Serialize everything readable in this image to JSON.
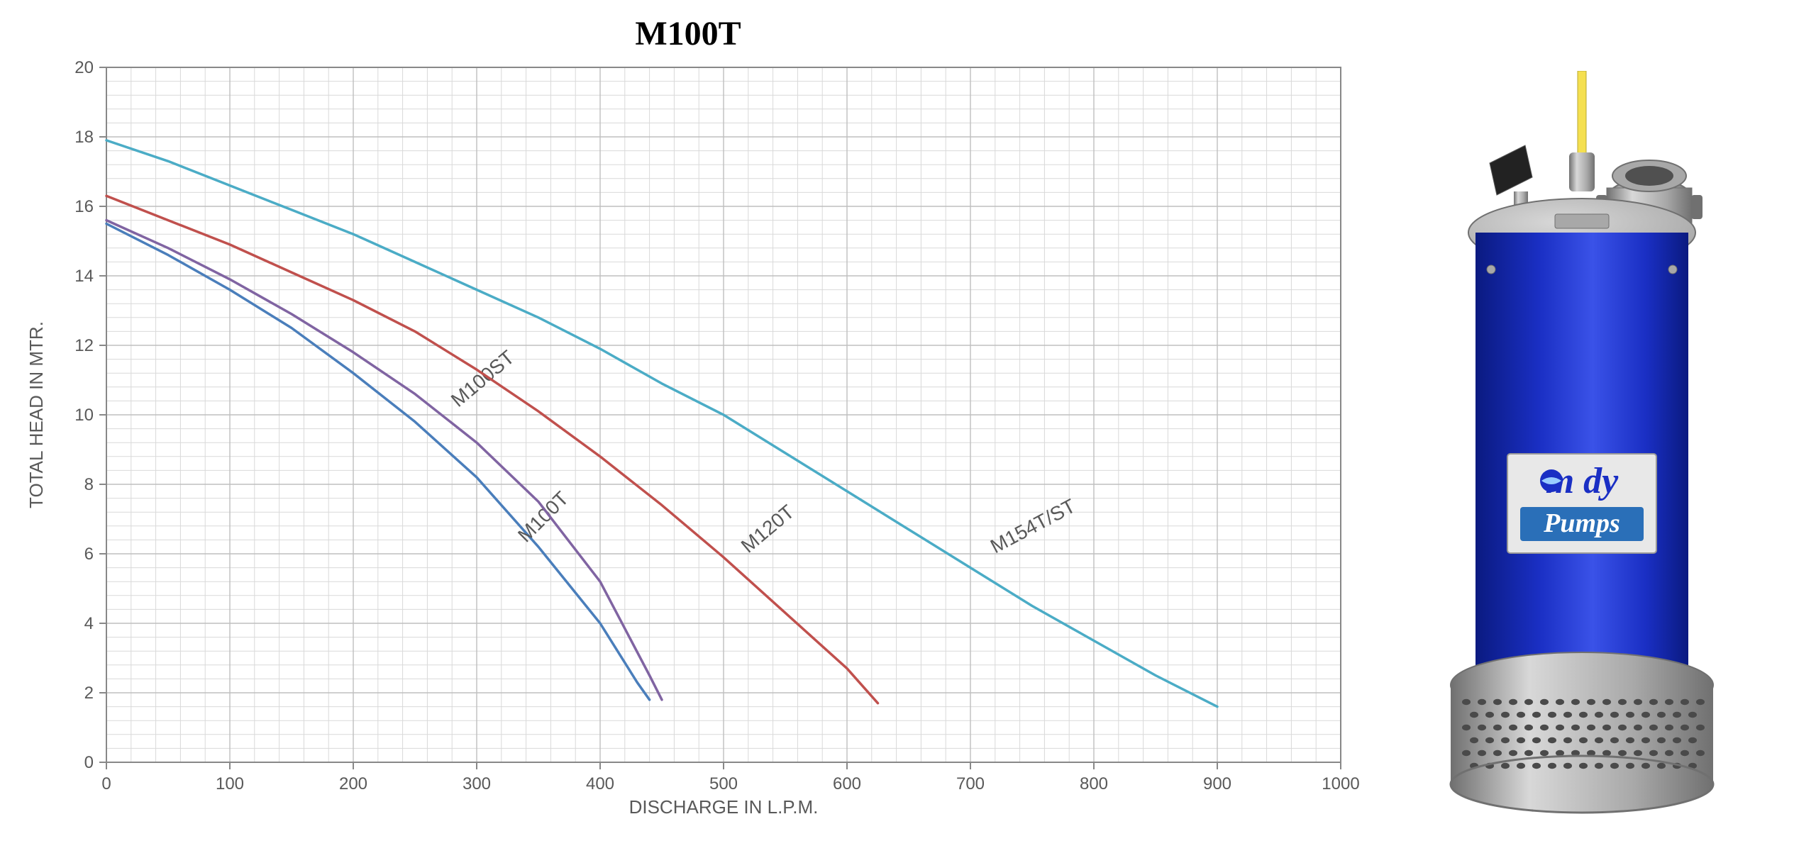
{
  "chart": {
    "type": "line",
    "title": "M100T",
    "title_fontsize": 48,
    "xlabel": "DISCHARGE IN L.P.M.",
    "ylabel": "TOTAL HEAD IN MTR.",
    "label_fontsize": 26,
    "tick_fontsize": 24,
    "xlim": [
      0,
      1000
    ],
    "ylim": [
      0,
      20
    ],
    "xtick_step": 100,
    "ytick_step": 2,
    "x_minor_per_major": 5,
    "y_minor_per_major": 5,
    "background_color": "#ffffff",
    "plot_area_color": "#ffffff",
    "border_color": "#888888",
    "major_grid_color": "#bfbfbf",
    "minor_grid_color": "#d9d9d9",
    "axis_text_color": "#595959",
    "line_width": 3.5,
    "series": [
      {
        "name": "M100T",
        "color": "#4a7ebb",
        "points": [
          {
            "x": 0,
            "y": 15.5
          },
          {
            "x": 50,
            "y": 14.6
          },
          {
            "x": 100,
            "y": 13.6
          },
          {
            "x": 150,
            "y": 12.5
          },
          {
            "x": 200,
            "y": 11.2
          },
          {
            "x": 250,
            "y": 9.8
          },
          {
            "x": 300,
            "y": 8.2
          },
          {
            "x": 350,
            "y": 6.2
          },
          {
            "x": 400,
            "y": 4.0
          },
          {
            "x": 430,
            "y": 2.3
          },
          {
            "x": 440,
            "y": 1.8
          }
        ],
        "label_pos": {
          "x": 340,
          "y": 6.3,
          "angle": -45
        }
      },
      {
        "name": "M100ST",
        "color": "#8064a2",
        "points": [
          {
            "x": 0,
            "y": 15.6
          },
          {
            "x": 50,
            "y": 14.8
          },
          {
            "x": 100,
            "y": 13.9
          },
          {
            "x": 150,
            "y": 12.9
          },
          {
            "x": 200,
            "y": 11.8
          },
          {
            "x": 250,
            "y": 10.6
          },
          {
            "x": 300,
            "y": 9.2
          },
          {
            "x": 350,
            "y": 7.5
          },
          {
            "x": 400,
            "y": 5.2
          },
          {
            "x": 440,
            "y": 2.5
          },
          {
            "x": 450,
            "y": 1.8
          }
        ],
        "label_pos": {
          "x": 285,
          "y": 10.2,
          "angle": -40
        }
      },
      {
        "name": "M120T",
        "color": "#c0504d",
        "points": [
          {
            "x": 0,
            "y": 16.3
          },
          {
            "x": 50,
            "y": 15.6
          },
          {
            "x": 100,
            "y": 14.9
          },
          {
            "x": 150,
            "y": 14.1
          },
          {
            "x": 200,
            "y": 13.3
          },
          {
            "x": 250,
            "y": 12.4
          },
          {
            "x": 300,
            "y": 11.3
          },
          {
            "x": 350,
            "y": 10.1
          },
          {
            "x": 400,
            "y": 8.8
          },
          {
            "x": 450,
            "y": 7.4
          },
          {
            "x": 500,
            "y": 5.9
          },
          {
            "x": 550,
            "y": 4.3
          },
          {
            "x": 600,
            "y": 2.7
          },
          {
            "x": 625,
            "y": 1.7
          }
        ],
        "label_pos": {
          "x": 520,
          "y": 6.0,
          "angle": -40
        }
      },
      {
        "name": "M154T/ST",
        "color": "#4bacc6",
        "points": [
          {
            "x": 0,
            "y": 17.9
          },
          {
            "x": 50,
            "y": 17.3
          },
          {
            "x": 100,
            "y": 16.6
          },
          {
            "x": 150,
            "y": 15.9
          },
          {
            "x": 200,
            "y": 15.2
          },
          {
            "x": 250,
            "y": 14.4
          },
          {
            "x": 300,
            "y": 13.6
          },
          {
            "x": 350,
            "y": 12.8
          },
          {
            "x": 400,
            "y": 11.9
          },
          {
            "x": 450,
            "y": 10.9
          },
          {
            "x": 500,
            "y": 10.0
          },
          {
            "x": 550,
            "y": 8.9
          },
          {
            "x": 600,
            "y": 7.8
          },
          {
            "x": 650,
            "y": 6.7
          },
          {
            "x": 700,
            "y": 5.6
          },
          {
            "x": 750,
            "y": 4.5
          },
          {
            "x": 800,
            "y": 3.5
          },
          {
            "x": 850,
            "y": 2.5
          },
          {
            "x": 900,
            "y": 1.6
          }
        ],
        "label_pos": {
          "x": 720,
          "y": 6.0,
          "angle": -28
        }
      }
    ]
  },
  "product": {
    "brand_line1": "m  dy",
    "brand_line2": "Pumps",
    "body_color": "#1a2fc4",
    "body_highlight": "#3a52e8",
    "body_shadow": "#0a1a80",
    "metal_light": "#d8d8d8",
    "metal_mid": "#a8a8a8",
    "metal_dark": "#707070",
    "cable_color": "#f5e050",
    "logo_bg": "#e8e8e8",
    "logo_text_color": "#1a2fc4",
    "logo_box_color": "#2a6fb8"
  }
}
